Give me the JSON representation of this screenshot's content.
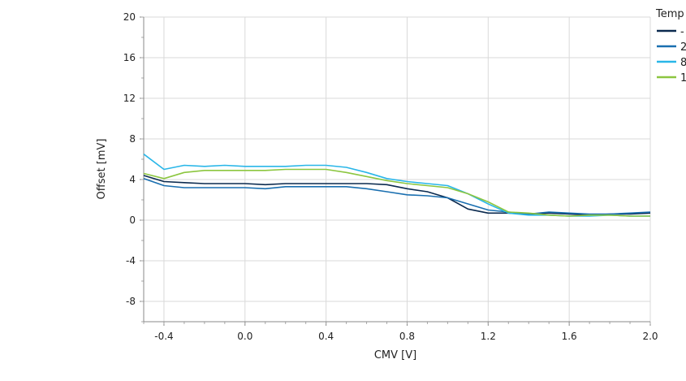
{
  "chart_data": {
    "type": "line",
    "title": "",
    "xlabel": "CMV [V]",
    "ylabel": "Offset [mV]",
    "xlim": [
      -0.5,
      2.0
    ],
    "ylim": [
      -10,
      20
    ],
    "xticks": [
      -0.4,
      0.0,
      0.4,
      0.8,
      1.2,
      1.6,
      2.0
    ],
    "xtick_labels": [
      "-0.4",
      "0.0",
      "0.4",
      "0.8",
      "1.2",
      "1.6",
      "2.0"
    ],
    "yticks": [
      -8,
      -4,
      0,
      4,
      8,
      12,
      16,
      20
    ],
    "ytick_labels": [
      "-8",
      "-4",
      "0",
      "4",
      "8",
      "12",
      "16",
      "20"
    ],
    "grid": true,
    "legend": {
      "title": "Temp",
      "placement": "top-right",
      "entries": [
        "-",
        "2",
        "8",
        "1"
      ]
    },
    "x": [
      -0.5,
      -0.4,
      -0.3,
      -0.2,
      -0.1,
      0.0,
      0.1,
      0.2,
      0.3,
      0.4,
      0.5,
      0.6,
      0.7,
      0.8,
      0.9,
      1.0,
      1.1,
      1.2,
      1.3,
      1.4,
      1.5,
      1.6,
      1.7,
      1.8,
      1.9,
      2.0
    ],
    "series": [
      {
        "name": "-",
        "color": "#0b2a4f",
        "values": [
          4.4,
          3.8,
          3.7,
          3.6,
          3.6,
          3.6,
          3.5,
          3.6,
          3.6,
          3.6,
          3.6,
          3.6,
          3.5,
          3.1,
          2.8,
          2.2,
          1.1,
          0.7,
          0.7,
          0.6,
          0.7,
          0.6,
          0.5,
          0.6,
          0.6,
          0.7
        ]
      },
      {
        "name": "2",
        "color": "#1a6fb0",
        "values": [
          4.1,
          3.4,
          3.2,
          3.2,
          3.2,
          3.2,
          3.1,
          3.3,
          3.3,
          3.3,
          3.3,
          3.1,
          2.8,
          2.5,
          2.4,
          2.2,
          1.6,
          1.0,
          0.8,
          0.6,
          0.8,
          0.7,
          0.6,
          0.6,
          0.7,
          0.8
        ]
      },
      {
        "name": "8",
        "color": "#29b6e8",
        "values": [
          6.5,
          5.0,
          5.4,
          5.3,
          5.4,
          5.3,
          5.3,
          5.3,
          5.4,
          5.4,
          5.2,
          4.7,
          4.1,
          3.8,
          3.6,
          3.4,
          2.6,
          1.6,
          0.7,
          0.5,
          0.5,
          0.4,
          0.4,
          0.5,
          0.4,
          0.4
        ]
      },
      {
        "name": "1",
        "color": "#8cc640",
        "values": [
          4.6,
          4.1,
          4.7,
          4.9,
          4.9,
          4.9,
          4.9,
          5.0,
          5.0,
          5.0,
          4.7,
          4.3,
          3.9,
          3.6,
          3.4,
          3.2,
          2.6,
          1.8,
          0.8,
          0.7,
          0.5,
          0.4,
          0.5,
          0.5,
          0.4,
          0.4
        ]
      }
    ]
  }
}
